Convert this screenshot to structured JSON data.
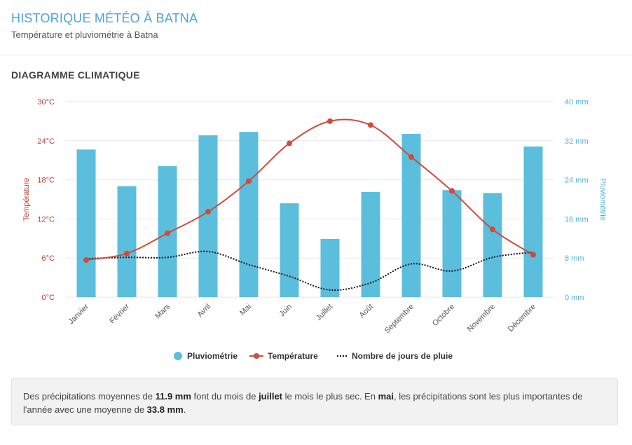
{
  "page": {
    "title": "HISTORIQUE MÉTÉO À BATNA",
    "subtitle": "Température et pluviométrie à Batna",
    "section_title": "DIAGRAMME CLIMATIQUE"
  },
  "summary": {
    "t1": "Des précipitations moyennes de ",
    "b1": "11.9 mm",
    "t2": " font du mois de ",
    "b2": "juillet",
    "t3": " le mois le plus sec. En ",
    "b3": "mai",
    "t4": ", les précipitations sont les plus importantes de l'année avec une moyenne de ",
    "b4": "33.8 mm",
    "t5": "."
  },
  "colors": {
    "bar": "#5bbedd",
    "temperature": "#d14b3a",
    "temp_axis": "#c0392b",
    "precip_axis": "#4fb3d9",
    "rain_days": "#111111",
    "grid": "#e6e6e6"
  },
  "chart_data": {
    "type": "bar+line",
    "categories": [
      "Janvier",
      "Février",
      "Mars",
      "Avril",
      "Mai",
      "Juin",
      "Juillet",
      "Août",
      "Septembre",
      "Octobre",
      "Novembre",
      "Décembre"
    ],
    "series": [
      {
        "name": "Pluviométrie",
        "type": "bar",
        "axis": "right",
        "values": [
          30.2,
          22.7,
          26.8,
          33.1,
          33.8,
          19.2,
          11.9,
          21.5,
          33.4,
          21.9,
          21.3,
          30.8
        ]
      },
      {
        "name": "Température",
        "type": "line",
        "axis": "left",
        "values": [
          5.7,
          6.7,
          9.8,
          13.1,
          17.8,
          23.6,
          27.0,
          26.4,
          21.5,
          16.3,
          10.4,
          6.5
        ]
      },
      {
        "name": "Nombre de jours de pluie",
        "type": "dotted-line",
        "axis": "left-scaled",
        "values": [
          5.9,
          6.1,
          6.1,
          7.0,
          5.0,
          3.2,
          1.1,
          2.2,
          5.1,
          4.0,
          6.1,
          6.9
        ]
      }
    ],
    "left_axis": {
      "label": "Température",
      "min": 0,
      "max": 30,
      "ticks": [
        "0°C",
        "6°C",
        "12°C",
        "18°C",
        "24°C",
        "30°C"
      ]
    },
    "right_axis": {
      "label": "Pluviométrie",
      "min": 0,
      "max": 40,
      "ticks": [
        "0 mm",
        "8 mm",
        "16 mm",
        "24 mm",
        "32 mm",
        "40 mm"
      ]
    },
    "grid": true,
    "legend_position": "bottom"
  }
}
